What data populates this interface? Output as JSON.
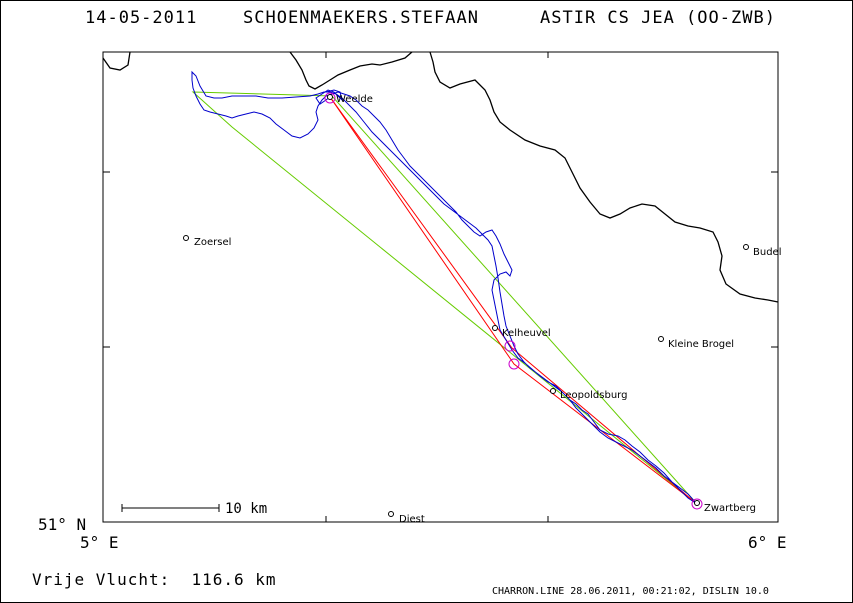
{
  "header": {
    "date": "14-05-2011",
    "pilot": "SCHOENMAEKERS.STEFAAN",
    "glider": "ASTIR CS JEA (OO-ZWB)"
  },
  "map": {
    "lat_label": "51° N",
    "lon_left_label": "5° E",
    "lon_right_label": "6° E",
    "places": [
      {
        "name": "Weelde"
      },
      {
        "name": "Zoersel"
      },
      {
        "name": "Budel"
      },
      {
        "name": "Kelheuvel"
      },
      {
        "name": "Kleine Brogel"
      },
      {
        "name": "Leopoldsburg"
      },
      {
        "name": "Zwartberg"
      },
      {
        "name": "Diest"
      }
    ],
    "scale_label": "10 km",
    "colors": {
      "track": "#0000cc",
      "task": "#ff0000",
      "fai": "#66cc00",
      "turnpoint": "#cc00cc",
      "border": "#000000"
    }
  },
  "footer": {
    "distance_label": "Vrije Vlucht:",
    "distance_value": "116.6 km",
    "software": "CHARRON.LINE 28.06.2011, 00:21:02, DISLIN 10.0"
  }
}
